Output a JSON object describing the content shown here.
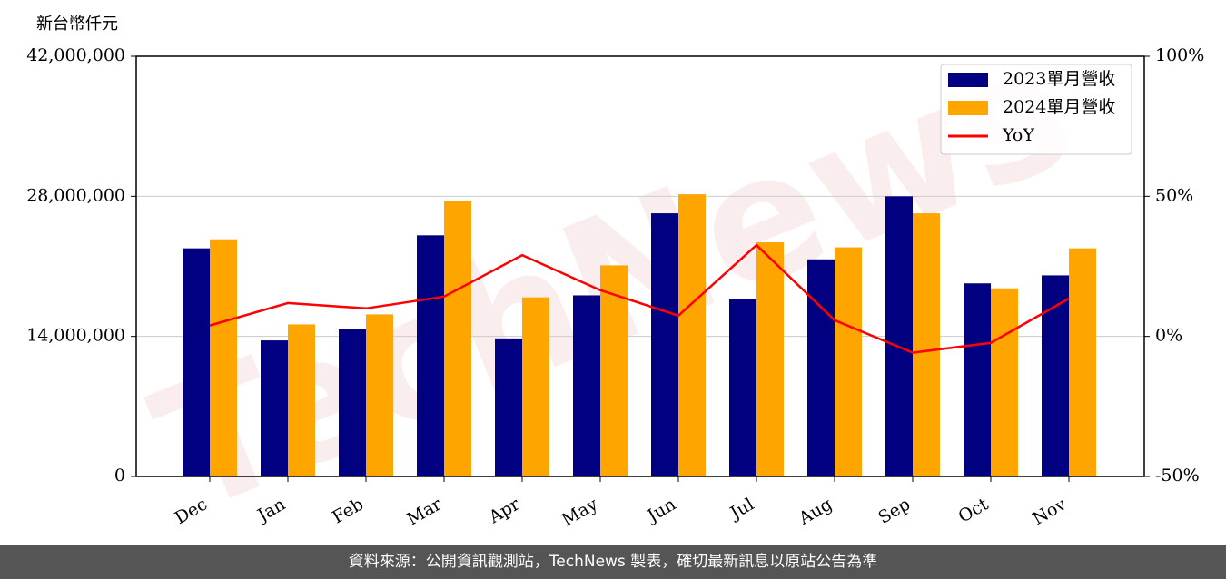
{
  "chart_data": {
    "type": "bar",
    "y_unit_label": "新台幣仟元",
    "watermark": "TechNews",
    "categories": [
      "Dec",
      "Jan",
      "Feb",
      "Mar",
      "Apr",
      "May",
      "Jun",
      "Jul",
      "Aug",
      "Sep",
      "Oct",
      "Nov"
    ],
    "series": [
      {
        "name": "2023單月營收",
        "color": "#000080",
        "type": "bar",
        "values": [
          22800000,
          13600000,
          14700000,
          24100000,
          13800000,
          18100000,
          26300000,
          17700000,
          21700000,
          28000000,
          19300000,
          20100000
        ]
      },
      {
        "name": "2024單月營收",
        "color": "#ffa500",
        "type": "bar",
        "values": [
          23700000,
          15200000,
          16200000,
          27500000,
          17900000,
          21100000,
          28200000,
          23400000,
          22900000,
          26300000,
          18800000,
          22800000
        ]
      },
      {
        "name": "YoY",
        "color": "#ff0000",
        "type": "line",
        "axis": "y2",
        "values": [
          3.9,
          11.9,
          10.0,
          14.2,
          29.0,
          16.5,
          7.4,
          32.6,
          5.8,
          -5.8,
          -2.3,
          13.5
        ]
      }
    ],
    "ylim": [
      0,
      42000000
    ],
    "yticks": [
      0,
      {
        "value": 14000000,
        "label": "14,000,000"
      },
      {
        "value": 28000000,
        "label": "28,000,000"
      },
      {
        "value": 42000000,
        "label": "42,000,000"
      }
    ],
    "y2lim": [
      -50,
      100
    ],
    "y2ticks": [
      {
        "value": -50,
        "label": "-50%"
      },
      {
        "value": 0,
        "label": "0%"
      },
      {
        "value": 50,
        "label": "50%"
      },
      {
        "value": 100,
        "label": "100%"
      }
    ],
    "grid": true,
    "legend": "upper-right",
    "footer": "資料來源：公開資訊觀測站，TechNews 製表，確切最新訊息以原站公告為準"
  }
}
